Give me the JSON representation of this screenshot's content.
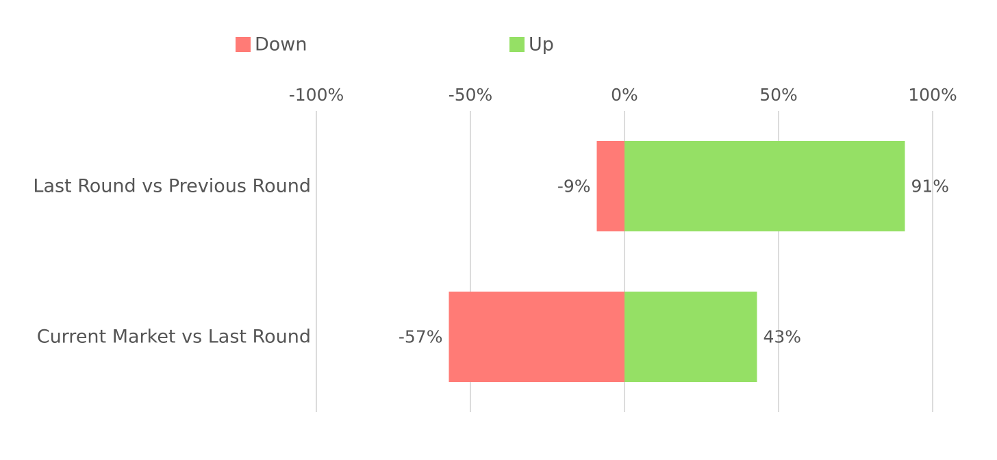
{
  "chart_data": {
    "type": "bar",
    "orientation": "horizontal",
    "stacked": "diverging",
    "title": "",
    "xlabel": "",
    "ylabel": "",
    "categories": [
      "Last Round vs Previous Round",
      "Current Market vs Last Round"
    ],
    "series": [
      {
        "name": "Down",
        "values": [
          -9,
          -57
        ],
        "labels": [
          "-9%",
          "-57%"
        ],
        "color": "#ff7b76"
      },
      {
        "name": "Up",
        "values": [
          91,
          43
        ],
        "labels": [
          "91%",
          "43%"
        ],
        "color": "#95e065"
      }
    ],
    "xlim": [
      -100,
      100
    ],
    "ticks": [
      -100,
      -50,
      0,
      50,
      100
    ],
    "tick_labels": [
      "-100%",
      "-50%",
      "0%",
      "50%",
      "100%"
    ],
    "axis_position": "top",
    "grid": true,
    "grid_color": "#d0d0d0",
    "legend": "top"
  }
}
